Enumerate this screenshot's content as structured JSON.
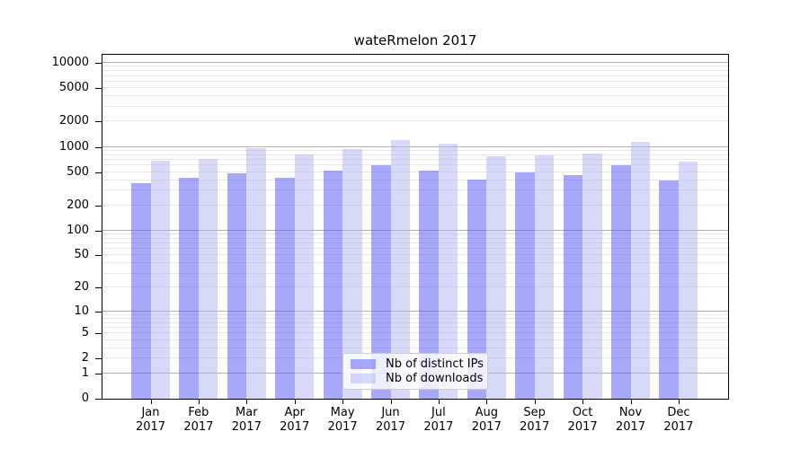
{
  "chart_data": {
    "type": "bar",
    "title": "wateRmelon 2017",
    "yscale": "log10(1+v)",
    "grid": true,
    "legend_position": "inside-bottom-center",
    "categories": [
      "Jan",
      "Feb",
      "Mar",
      "Apr",
      "May",
      "Jun",
      "Jul",
      "Aug",
      "Sep",
      "Oct",
      "Nov",
      "Dec"
    ],
    "year": "2017",
    "series": [
      {
        "name": "Nb of distinct IPs",
        "fill": "rgba(81,81,245,0.5)",
        "rendered_color": "#a8a8fa",
        "values": [
          370,
          425,
          485,
          425,
          515,
          600,
          520,
          405,
          490,
          460,
          600,
          400
        ]
      },
      {
        "name": "Nb of downloads",
        "fill": "rgba(177,177,241,0.5)",
        "rendered_color": "#d8d8f8",
        "values": [
          690,
          715,
          955,
          815,
          940,
          1200,
          1080,
          780,
          800,
          835,
          1150,
          665
        ]
      }
    ],
    "yticks": [
      0,
      1,
      2,
      5,
      10,
      20,
      50,
      100,
      200,
      500,
      1000,
      2000,
      5000,
      10000
    ],
    "ylim": [
      0,
      12500
    ],
    "grid_major_at": [
      1,
      10,
      100,
      1000,
      10000
    ],
    "grid_minor": "2..9 per decade",
    "colors": {
      "grid_major": "#b0b0b0",
      "grid_minor": "#e7e7e7",
      "axis_frame": "#000000",
      "tick_labels": "#000000"
    }
  }
}
